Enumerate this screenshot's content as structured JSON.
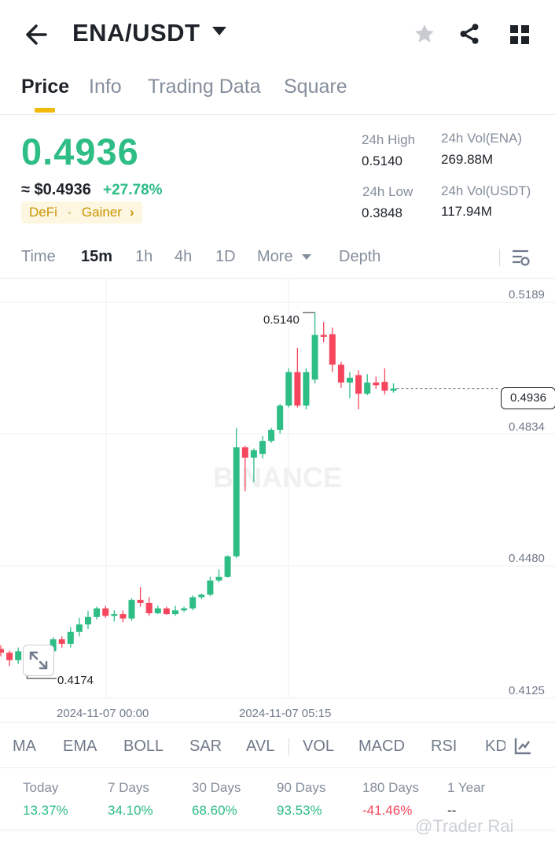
{
  "header": {
    "pair": "ENA/USDT"
  },
  "tabs": [
    "Price",
    "Info",
    "Trading Data",
    "Square"
  ],
  "price": {
    "last": "0.4936",
    "usd": "≈ $0.4936",
    "change": "+27.78%",
    "tag1": "DeFi",
    "tag2": "Gainer",
    "high_label": "24h High",
    "high": "0.5140",
    "low_label": "24h Low",
    "low": "0.3848",
    "vol_ena_label": "24h Vol(ENA)",
    "vol_ena": "269.88M",
    "vol_usdt_label": "24h Vol(USDT)",
    "vol_usdt": "117.94M"
  },
  "intervals": [
    "Time",
    "15m",
    "1h",
    "4h",
    "1D",
    "More",
    "Depth"
  ],
  "chart": {
    "price_labels": [
      "0.5189",
      "0.4834",
      "0.4480",
      "0.4125"
    ],
    "current": "0.4936",
    "high_mark": "0.5140",
    "low_mark": "0.4174",
    "date1": "2024-11-07 00:00",
    "date2": "2024-11-07 05:15",
    "watermark": "BINANCE"
  },
  "chart_data": {
    "type": "candlestick",
    "ylim": [
      0.4125,
      0.5189
    ],
    "candles": [
      {
        "o": 0.4236,
        "c": 0.4226,
        "h": 0.4246,
        "l": 0.4216
      },
      {
        "o": 0.4226,
        "c": 0.4206,
        "h": 0.4232,
        "l": 0.419
      },
      {
        "o": 0.4206,
        "c": 0.423,
        "h": 0.424,
        "l": 0.4196
      },
      {
        "o": 0.423,
        "c": 0.4212,
        "h": 0.424,
        "l": 0.4174
      },
      {
        "o": 0.4212,
        "c": 0.423,
        "h": 0.424,
        "l": 0.42
      },
      {
        "o": 0.4225,
        "c": 0.423,
        "h": 0.424,
        "l": 0.4205
      },
      {
        "o": 0.423,
        "c": 0.4262,
        "h": 0.4268,
        "l": 0.422
      },
      {
        "o": 0.4262,
        "c": 0.425,
        "h": 0.427,
        "l": 0.424
      },
      {
        "o": 0.425,
        "c": 0.4282,
        "h": 0.4295,
        "l": 0.424
      },
      {
        "o": 0.4282,
        "c": 0.4302,
        "h": 0.432,
        "l": 0.427
      },
      {
        "o": 0.4302,
        "c": 0.4322,
        "h": 0.4338,
        "l": 0.429
      },
      {
        "o": 0.4322,
        "c": 0.4345,
        "h": 0.435,
        "l": 0.4315
      },
      {
        "o": 0.4345,
        "c": 0.4325,
        "h": 0.4352,
        "l": 0.432
      },
      {
        "o": 0.4325,
        "c": 0.433,
        "h": 0.434,
        "l": 0.431
      },
      {
        "o": 0.433,
        "c": 0.4318,
        "h": 0.434,
        "l": 0.4308
      },
      {
        "o": 0.4318,
        "c": 0.4368,
        "h": 0.4372,
        "l": 0.4312
      },
      {
        "o": 0.4368,
        "c": 0.436,
        "h": 0.4402,
        "l": 0.435
      },
      {
        "o": 0.436,
        "c": 0.4332,
        "h": 0.4375,
        "l": 0.4325
      },
      {
        "o": 0.4332,
        "c": 0.4345,
        "h": 0.4352,
        "l": 0.433
      },
      {
        "o": 0.4345,
        "c": 0.433,
        "h": 0.435,
        "l": 0.4328
      },
      {
        "o": 0.433,
        "c": 0.434,
        "h": 0.4352,
        "l": 0.4325
      },
      {
        "o": 0.434,
        "c": 0.4345,
        "h": 0.435,
        "l": 0.4335
      },
      {
        "o": 0.4345,
        "c": 0.4375,
        "h": 0.438,
        "l": 0.434
      },
      {
        "o": 0.4375,
        "c": 0.4382,
        "h": 0.4385,
        "l": 0.437
      },
      {
        "o": 0.4382,
        "c": 0.442,
        "h": 0.443,
        "l": 0.4378
      },
      {
        "o": 0.442,
        "c": 0.443,
        "h": 0.445,
        "l": 0.4415
      },
      {
        "o": 0.443,
        "c": 0.4485,
        "h": 0.4488,
        "l": 0.4428
      },
      {
        "o": 0.4485,
        "c": 0.4778,
        "h": 0.483,
        "l": 0.448
      },
      {
        "o": 0.4778,
        "c": 0.475,
        "h": 0.4782,
        "l": 0.466
      },
      {
        "o": 0.475,
        "c": 0.477,
        "h": 0.4775,
        "l": 0.4685
      },
      {
        "o": 0.476,
        "c": 0.4795,
        "h": 0.4808,
        "l": 0.4748
      },
      {
        "o": 0.4795,
        "c": 0.4825,
        "h": 0.483,
        "l": 0.479
      },
      {
        "o": 0.4825,
        "c": 0.489,
        "h": 0.4895,
        "l": 0.4815
      },
      {
        "o": 0.489,
        "c": 0.498,
        "h": 0.499,
        "l": 0.4885
      },
      {
        "o": 0.498,
        "c": 0.489,
        "h": 0.5045,
        "l": 0.4885
      },
      {
        "o": 0.489,
        "c": 0.498,
        "h": 0.499,
        "l": 0.488
      },
      {
        "o": 0.496,
        "c": 0.508,
        "h": 0.514,
        "l": 0.495
      },
      {
        "o": 0.508,
        "c": 0.5075,
        "h": 0.5115,
        "l": 0.506
      },
      {
        "o": 0.5082,
        "c": 0.5,
        "h": 0.51,
        "l": 0.498
      },
      {
        "o": 0.5,
        "c": 0.4952,
        "h": 0.5008,
        "l": 0.4938
      },
      {
        "o": 0.4952,
        "c": 0.4965,
        "h": 0.498,
        "l": 0.491
      },
      {
        "o": 0.4972,
        "c": 0.4922,
        "h": 0.4985,
        "l": 0.488
      },
      {
        "o": 0.4922,
        "c": 0.4952,
        "h": 0.4975,
        "l": 0.4918
      },
      {
        "o": 0.4952,
        "c": 0.4945,
        "h": 0.4968,
        "l": 0.4935
      },
      {
        "o": 0.4954,
        "c": 0.493,
        "h": 0.499,
        "l": 0.492
      },
      {
        "o": 0.493,
        "c": 0.4936,
        "h": 0.495,
        "l": 0.4925
      }
    ],
    "up_color": "#2ebd85",
    "down_color": "#f6465d"
  },
  "indicators": [
    "MA",
    "EMA",
    "BOLL",
    "SAR",
    "AVL",
    "VOL",
    "MACD",
    "RSI",
    "KD"
  ],
  "performance": {
    "labels": [
      "Today",
      "7 Days",
      "30 Days",
      "90 Days",
      "180 Days",
      "1 Year"
    ],
    "values": [
      "13.37%",
      "34.10%",
      "68.60%",
      "93.53%",
      "-41.46%",
      "--"
    ]
  },
  "watermark_text": "@Trader Rai",
  "colors": {
    "green": "#2ebd85",
    "red": "#f6465d",
    "yellow": "#f0b90b"
  }
}
